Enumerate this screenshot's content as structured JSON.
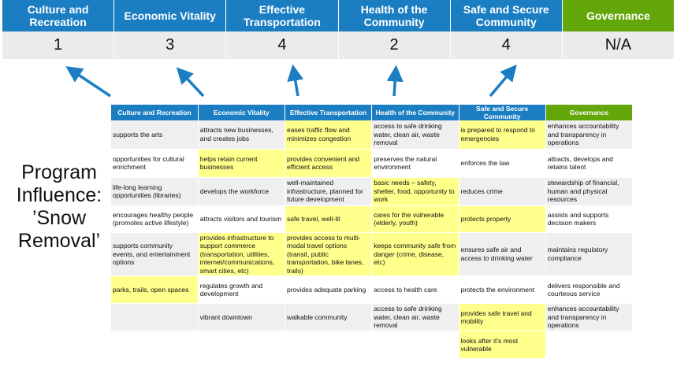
{
  "categories": [
    {
      "label": "Culture and Recreation",
      "score": "1"
    },
    {
      "label": "Economic Vitality",
      "score": "3"
    },
    {
      "label": "Effective Transportation",
      "score": "4"
    },
    {
      "label": "Health of the Community",
      "score": "2"
    },
    {
      "label": "Safe and Secure Community",
      "score": "4"
    },
    {
      "label": "Governance",
      "score": "N/A"
    }
  ],
  "side_title": "Program Influence: ’Snow Removal’",
  "colors": {
    "header_blue": "#1b7ec2",
    "governance_green": "#64a70b",
    "highlight": "#ffff8c",
    "arrow": "#1b7ec2"
  },
  "table": {
    "headers": [
      "Culture and Recreation",
      "Economic Vitality",
      "Effective Transportation",
      "Health of the Community",
      "Safe and Secure Community",
      "Governance"
    ],
    "rows": [
      {
        "cells": [
          "supports the arts",
          "attracts new businesses, and creates jobs",
          "eases traffic flow and minimizes congestion",
          "access to safe drinking water, clean air, waste removal",
          "is prepared to respond to emergencies",
          "enhances accountability and transparency in operations"
        ],
        "highlighted": [
          2,
          4
        ]
      },
      {
        "cells": [
          "opportunities for cultural enrichment",
          "helps retain current businesses",
          "provides convenient and efficient access",
          "preserves the natural environment",
          "enforces the law",
          "attracts, develops and retains talent"
        ],
        "highlighted": [
          1,
          2
        ]
      },
      {
        "cells": [
          "life-long learning opportunities (libraries)",
          "develops the workforce",
          "well-maintained infrastructure, planned for future development",
          "basic needs – safety, shelter, food, opportunity to work",
          "reduces crime",
          "stewardship of financial, human and physical resources"
        ],
        "highlighted": [
          3
        ]
      },
      {
        "cells": [
          "encourages healthy people (promotes active lifestyle)",
          "attracts visitors and tourism",
          "safe travel, well-lit",
          "cares for the vulnerable (elderly, youth)",
          "protects property",
          "assists and supports decision makers"
        ],
        "highlighted": [
          2,
          3,
          4
        ]
      },
      {
        "cells": [
          "supports community events, and entertainment options",
          "provides infrastructure to support commerce (transportation, utilities, internet/communications, smart cities, etc)",
          "provides access to multi-modal travel options (transit, public transportation, bike lanes, trails)",
          "keeps community safe from danger (crime, disease, etc)",
          "ensures safe air and access to drinking water",
          "maintains regulatory compliance"
        ],
        "highlighted": [
          1,
          2,
          3
        ]
      },
      {
        "cells": [
          "parks, trails, open spaces",
          "regulates growth and development",
          "provides adequate parking",
          "access to health care",
          "protects the environment",
          "delivers responsible and courteous service"
        ],
        "highlighted": [
          0
        ]
      },
      {
        "cells": [
          "",
          "vibrant downtown",
          "walkable community",
          "access to safe drinking water, clean air, waste removal",
          "provides safe travel and mobility",
          "enhances accountability and transparency in operations"
        ],
        "highlighted": [
          4
        ]
      },
      {
        "cells": [
          "",
          "",
          "",
          "",
          "looks after it’s most vulnerable",
          ""
        ],
        "highlighted": [
          4
        ]
      }
    ]
  }
}
